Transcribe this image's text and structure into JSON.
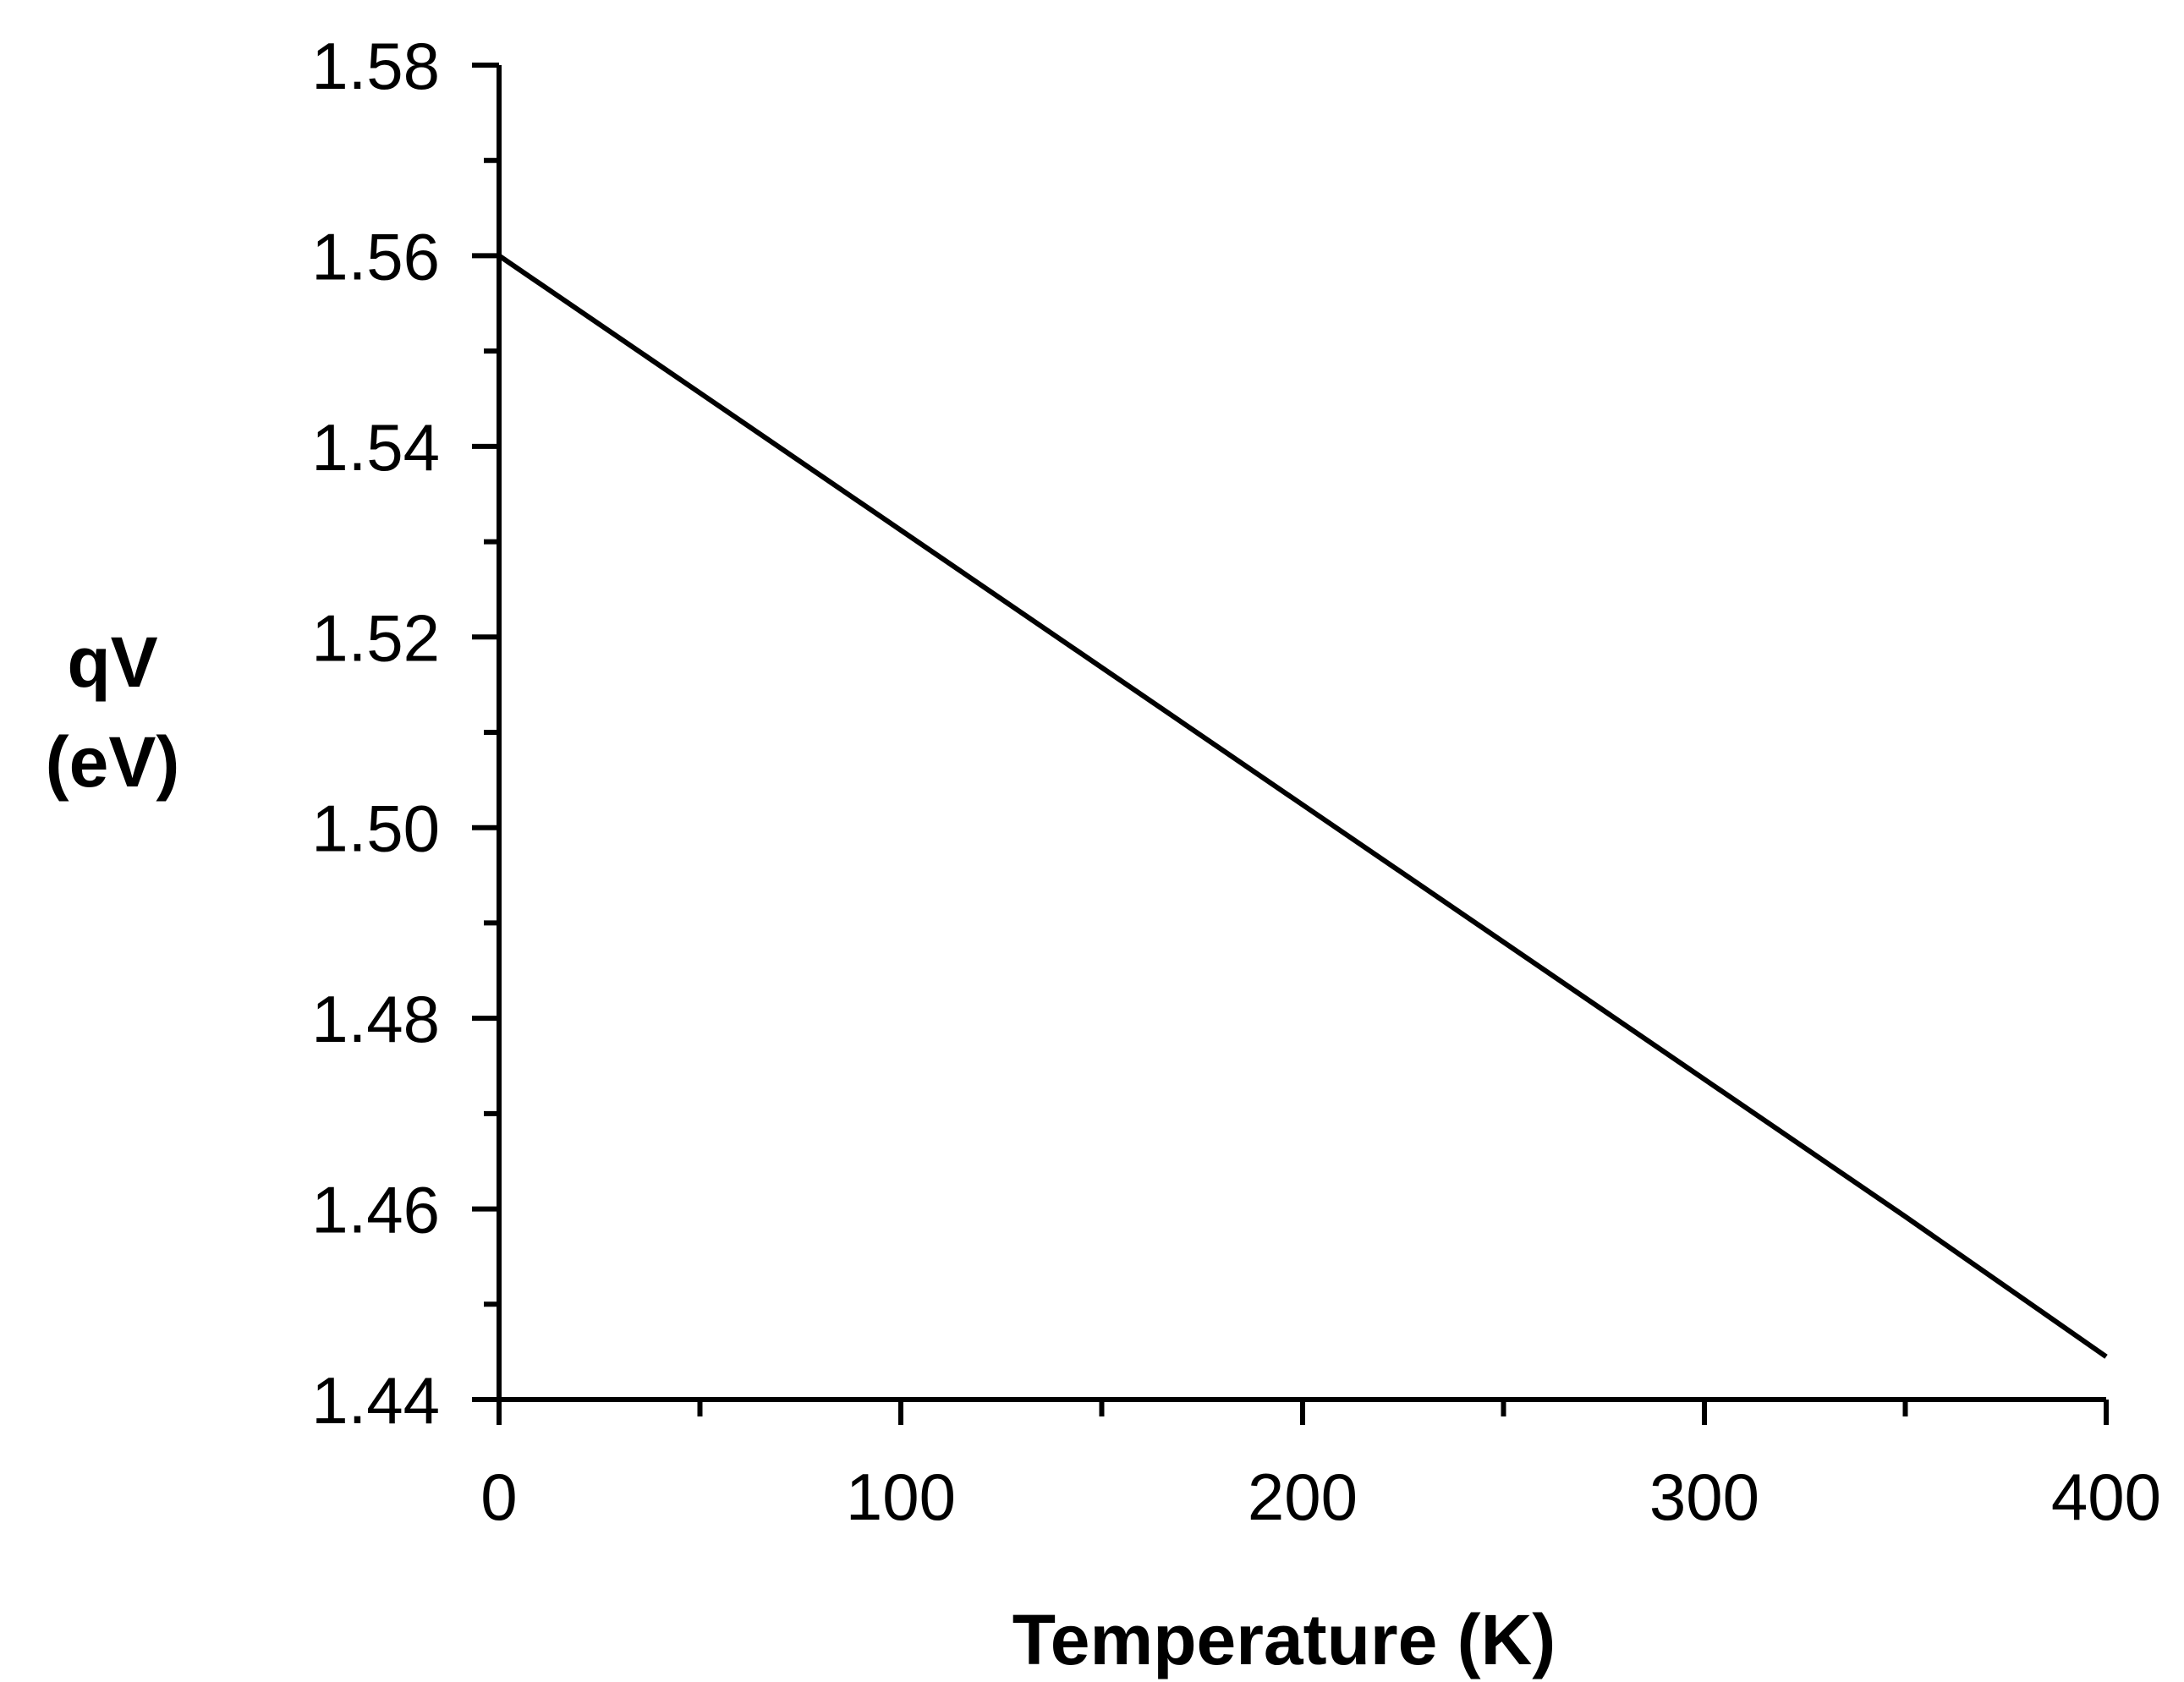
{
  "chart_data": {
    "type": "line",
    "title": "",
    "xlabel": "Temperature (K)",
    "ylabel_line1": "qV",
    "ylabel_line2": "(eV)",
    "xlim": [
      0,
      400
    ],
    "ylim": [
      1.44,
      1.58
    ],
    "x_major_ticks": [
      0,
      100,
      200,
      300,
      400
    ],
    "x_minor_ticks": [
      50,
      150,
      250,
      350
    ],
    "y_major_ticks": [
      1.44,
      1.46,
      1.48,
      1.5,
      1.52,
      1.54,
      1.56,
      1.58
    ],
    "y_minor_ticks": [
      1.45,
      1.47,
      1.49,
      1.51,
      1.53,
      1.55,
      1.57
    ],
    "x_tick_labels": [
      "0",
      "100",
      "200",
      "300",
      "400"
    ],
    "y_tick_labels": [
      "1.44",
      "1.46",
      "1.48",
      "1.50",
      "1.52",
      "1.54",
      "1.56",
      "1.58"
    ],
    "grid": false,
    "legend": "none",
    "line_color": "#000000",
    "series": [
      {
        "x": [
          0,
          50,
          100,
          150,
          200,
          250,
          300,
          350,
          400
        ],
        "y": [
          1.56,
          1.5456,
          1.5312,
          1.5168,
          1.5024,
          1.488,
          1.4736,
          1.4592,
          1.4445
        ]
      }
    ]
  }
}
